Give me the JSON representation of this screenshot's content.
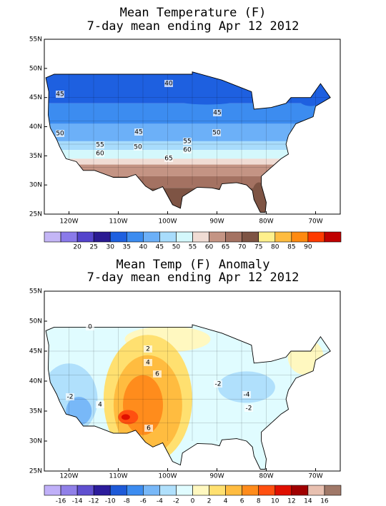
{
  "panels": [
    {
      "title": "Mean Temperature (F)",
      "subtitle": "7-day mean ending Apr 12 2012",
      "lat_labels": [
        "55N",
        "50N",
        "45N",
        "40N",
        "35N",
        "30N",
        "25N"
      ],
      "lon_labels": [
        "120W",
        "110W",
        "100W",
        "90W",
        "80W",
        "70W"
      ],
      "contour_labels": [
        "40",
        "45",
        "45",
        "50",
        "45",
        "50",
        "55",
        "50",
        "55",
        "60",
        "60",
        "65"
      ],
      "colorbar": {
        "colors": [
          "#c4b6f6",
          "#8a7aea",
          "#5444cc",
          "#2a1a92",
          "#1e60e0",
          "#3c8cf0",
          "#6cb0f8",
          "#a8dcfc",
          "#d4f8fc",
          "#f0dcd4",
          "#c49484",
          "#a47262",
          "#7e5444",
          "#fff08c",
          "#ffbc40",
          "#ff8a10",
          "#ff3a00",
          "#c00000"
        ],
        "labels": [
          "20",
          "25",
          "30",
          "35",
          "40",
          "45",
          "50",
          "55",
          "60",
          "65",
          "70",
          "75",
          "80",
          "85",
          "90"
        ]
      }
    },
    {
      "title": "Mean Temp (F) Anomaly",
      "subtitle": "7-day mean ending Apr 12 2012",
      "lat_labels": [
        "55N",
        "50N",
        "45N",
        "40N",
        "35N",
        "30N",
        "25N"
      ],
      "lon_labels": [
        "120W",
        "110W",
        "100W",
        "90W",
        "80W",
        "70W"
      ],
      "contour_labels": [
        "0",
        "2",
        "4",
        "6",
        "-2",
        "4",
        "6",
        "-2",
        "-4",
        "-2"
      ],
      "colorbar": {
        "colors": [
          "#c0b0f8",
          "#9080e8",
          "#6050d0",
          "#2c1c9c",
          "#1e5ad8",
          "#3c8cf0",
          "#78b8f8",
          "#b0e0fc",
          "#e0fcff",
          "#fff8c0",
          "#ffe070",
          "#ffbc40",
          "#ff8c1c",
          "#ff5010",
          "#e01000",
          "#a00000",
          "#e8c0b0",
          "#a07868"
        ],
        "labels": [
          "-16",
          "-14",
          "-12",
          "-10",
          "-8",
          "-6",
          "-4",
          "-2",
          "0",
          "2",
          "4",
          "6",
          "8",
          "10",
          "12",
          "14",
          "16"
        ]
      }
    }
  ]
}
